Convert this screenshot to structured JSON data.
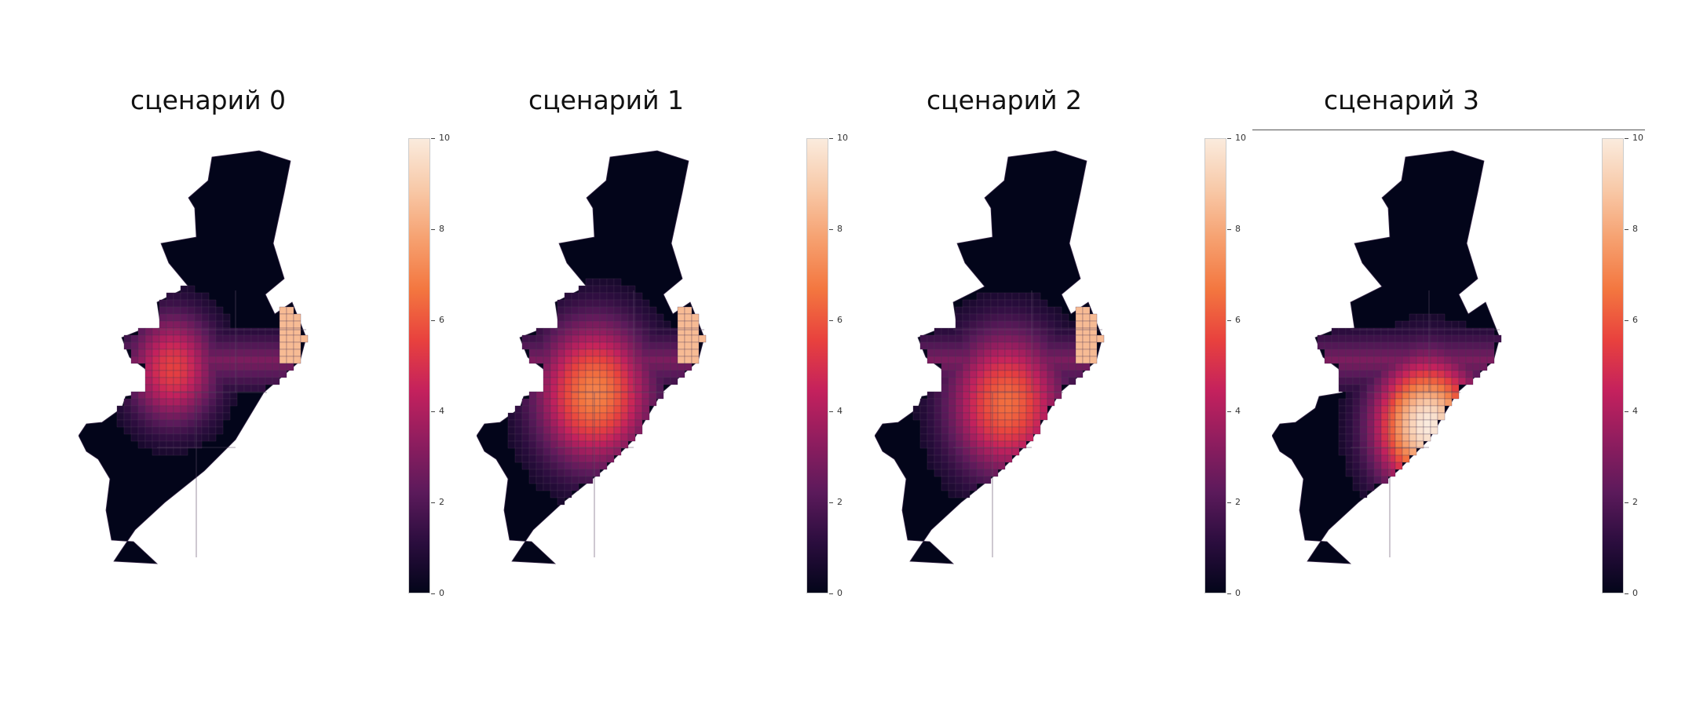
{
  "figure": {
    "panels": [
      {
        "title": "сценарий 0",
        "hot_center": [
          -1.0,
          0.0
        ],
        "hot_strength": 0.55,
        "spread": 0.35
      },
      {
        "title": "сценарий 1",
        "hot_center": [
          -0.5,
          0.4
        ],
        "hot_strength": 0.7,
        "spread": 0.45
      },
      {
        "title": "сценарий 2",
        "hot_center": [
          -0.2,
          0.55
        ],
        "hot_strength": 0.65,
        "spread": 0.45
      },
      {
        "title": "сценарий 3",
        "hot_center": [
          0.3,
          0.9
        ],
        "hot_strength": 1.0,
        "spread": 0.4
      }
    ],
    "colorbar": {
      "min": 0,
      "max": 10,
      "ticks": [
        "0",
        "2",
        "4",
        "6",
        "8",
        "10"
      ],
      "colormap": [
        "#03051a",
        "#2b0d3e",
        "#5c1a5b",
        "#8f1d5f",
        "#c4215d",
        "#e8413e",
        "#f3763f",
        "#f6a06f",
        "#f8c9a8",
        "#faebdd"
      ]
    }
  }
}
